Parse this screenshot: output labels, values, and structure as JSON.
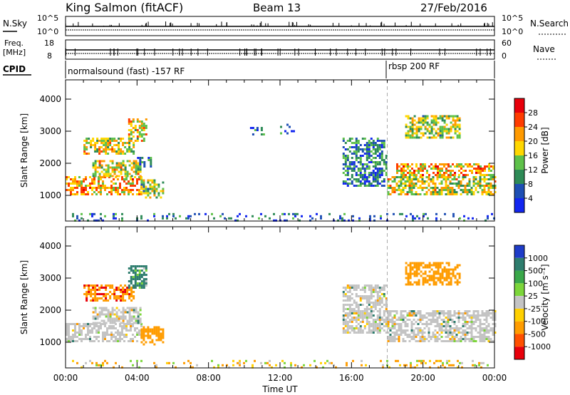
{
  "header": {
    "station": "King Salmon (fitACF)",
    "beam": "Beam 13",
    "date": "27/Feb/2016"
  },
  "top_panels": {
    "noise": {
      "left_label": "N.Sky",
      "right_label": "N.Search",
      "left_ticks": [
        "10^5",
        "10^0"
      ],
      "right_ticks": [
        "10^5",
        "10^0"
      ]
    },
    "freq": {
      "left_label_1": "Freq.",
      "left_label_2": "[MHz]",
      "left_ticks": [
        "18",
        "8"
      ],
      "right_label": "Nave",
      "right_ticks": [
        "60",
        "0"
      ]
    },
    "cpid": {
      "label": "CPID",
      "modes": [
        {
          "name": "normalsound (fast) -157 RF",
          "start_hour": 0
        },
        {
          "name": "rbsp 200 RF",
          "start_hour": 18
        }
      ]
    }
  },
  "chart_data": [
    {
      "type": "heatmap",
      "quantity": "Power",
      "xlabel": "Time UT",
      "ylabel": "Slant Range [km]",
      "xlim": [
        0,
        24
      ],
      "ylim": [
        200,
        4600
      ],
      "x_ticks": [
        "00:00",
        "04:00",
        "08:00",
        "12:00",
        "16:00",
        "20:00",
        "00:00"
      ],
      "y_ticks": [
        1000,
        2000,
        3000,
        4000
      ],
      "colorbar": {
        "label": "Power [dB]",
        "ticks": [
          "4",
          "8",
          "12",
          "16",
          "20",
          "24",
          "28"
        ],
        "range": [
          0,
          30
        ],
        "colors": [
          "#1226f0",
          "#1e4fb4",
          "#2e8b57",
          "#5ec14a",
          "#ffd700",
          "#ff9a00",
          "#ff3c00",
          "#e8000b"
        ]
      },
      "echo_regions": [
        {
          "t0": 0.0,
          "t1": 4.3,
          "r0": 1000,
          "r1": 1600,
          "power": 20
        },
        {
          "t0": 1.5,
          "t1": 4.2,
          "r0": 1600,
          "r1": 2100,
          "power": 16
        },
        {
          "t0": 4.0,
          "t1": 4.8,
          "r0": 1900,
          "r1": 2200,
          "power": 8
        },
        {
          "t0": 4.2,
          "t1": 5.5,
          "r0": 900,
          "r1": 1500,
          "power": 14
        },
        {
          "t0": 1.0,
          "t1": 3.8,
          "r0": 2300,
          "r1": 2800,
          "power": 16
        },
        {
          "t0": 3.5,
          "t1": 4.5,
          "r0": 2700,
          "r1": 3400,
          "power": 18
        },
        {
          "t0": 10.2,
          "t1": 11.2,
          "r0": 2900,
          "r1": 3200,
          "power": 6
        },
        {
          "t0": 12.0,
          "t1": 13.0,
          "r0": 2900,
          "r1": 3300,
          "power": 6
        },
        {
          "t0": 15.5,
          "t1": 18.0,
          "r0": 1300,
          "r1": 2800,
          "power": 8
        },
        {
          "t0": 18.0,
          "t1": 24.0,
          "r0": 1000,
          "r1": 1600,
          "power": 16
        },
        {
          "t0": 18.5,
          "t1": 24.0,
          "r0": 1600,
          "r1": 2000,
          "power": 20
        },
        {
          "t0": 19.0,
          "t1": 22.0,
          "r0": 2800,
          "r1": 3500,
          "power": 14
        },
        {
          "t0": 0.0,
          "t1": 24.0,
          "r0": 200,
          "r1": 450,
          "power": 6
        }
      ]
    },
    {
      "type": "heatmap",
      "quantity": "Velocity",
      "xlabel": "Time UT",
      "ylabel": "Slant Range [km]",
      "xlim": [
        0,
        24
      ],
      "ylim": [
        200,
        4600
      ],
      "x_ticks": [
        "00:00",
        "04:00",
        "08:00",
        "12:00",
        "16:00",
        "20:00",
        "00:00"
      ],
      "y_ticks": [
        1000,
        2000,
        3000,
        4000
      ],
      "colorbar": {
        "label": "Velocity [m s⁻¹]",
        "ticks": [
          "1000",
          "500",
          "100",
          "25",
          "-25",
          "-100",
          "-500",
          "-1000"
        ],
        "colors": [
          "#1e3cc8",
          "#2e7d6e",
          "#3aa84a",
          "#7cd63a",
          "#c4c4c4",
          "#ffd000",
          "#ff9c00",
          "#ff5000",
          "#e8000b"
        ]
      },
      "echo_regions": [
        {
          "t0": 0.0,
          "t1": 4.3,
          "r0": 1000,
          "r1": 1600,
          "velocity": 0
        },
        {
          "t0": 1.5,
          "t1": 4.2,
          "r0": 1600,
          "r1": 2100,
          "velocity": 0
        },
        {
          "t0": 4.2,
          "t1": 5.5,
          "r0": 900,
          "r1": 1500,
          "velocity": -300
        },
        {
          "t0": 1.0,
          "t1": 3.8,
          "r0": 2300,
          "r1": 2800,
          "velocity": -400
        },
        {
          "t0": 3.5,
          "t1": 4.5,
          "r0": 2700,
          "r1": 3400,
          "velocity": 200
        },
        {
          "t0": 15.5,
          "t1": 18.0,
          "r0": 1300,
          "r1": 2800,
          "velocity": 0
        },
        {
          "t0": 18.0,
          "t1": 24.0,
          "r0": 1000,
          "r1": 2000,
          "velocity": 0
        },
        {
          "t0": 19.0,
          "t1": 22.0,
          "r0": 2800,
          "r1": 3500,
          "velocity": -300
        },
        {
          "t0": 0.0,
          "t1": 24.0,
          "r0": 200,
          "r1": 450,
          "velocity": -100
        }
      ]
    }
  ]
}
